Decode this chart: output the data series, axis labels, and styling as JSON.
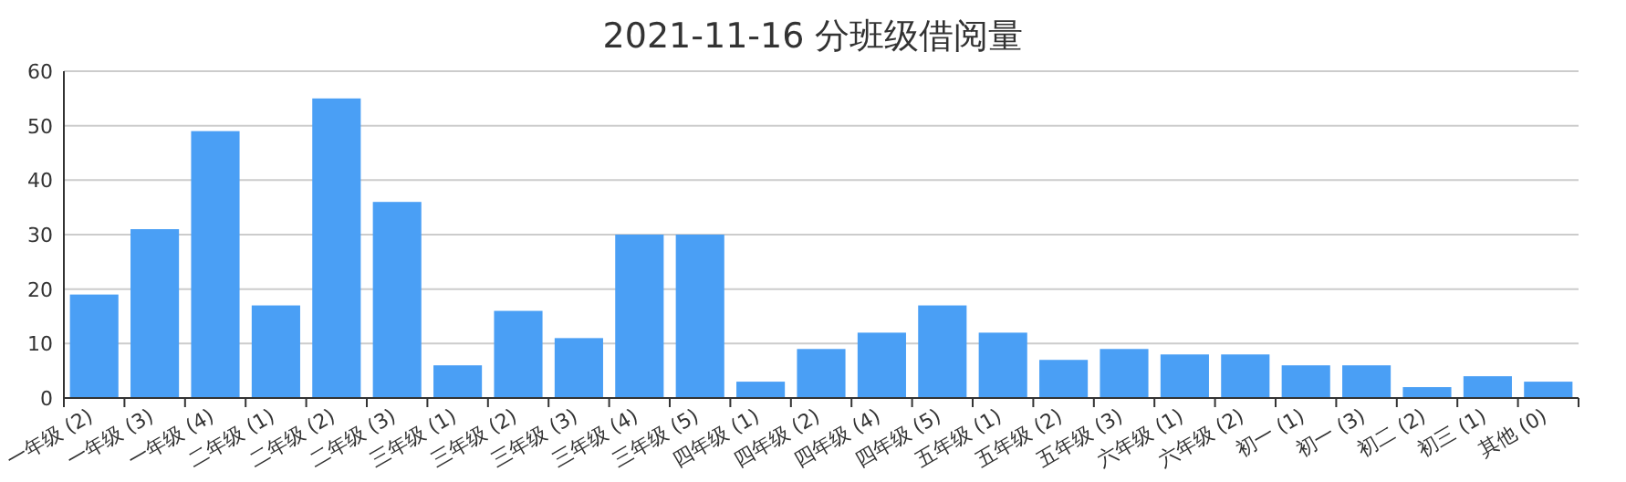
{
  "chart_data": {
    "type": "bar",
    "title": "2021-11-16 分班级借阅量",
    "categories": [
      "一年级 (2)",
      "一年级 (3)",
      "一年级 (4)",
      "二年级 (1)",
      "二年级 (2)",
      "二年级 (3)",
      "三年级 (1)",
      "三年级 (2)",
      "三年级 (3)",
      "三年级 (4)",
      "三年级 (5)",
      "四年级 (1)",
      "四年级 (2)",
      "四年级 (4)",
      "四年级 (5)",
      "五年级 (1)",
      "五年级 (2)",
      "五年级 (3)",
      "六年级 (1)",
      "六年级 (2)",
      "初一 (1)",
      "初一 (3)",
      "初二 (2)",
      "初三 (1)",
      "其他 (0)"
    ],
    "values": [
      19,
      31,
      49,
      17,
      55,
      36,
      6,
      16,
      11,
      30,
      30,
      3,
      9,
      12,
      17,
      12,
      7,
      9,
      8,
      8,
      6,
      6,
      2,
      4,
      3
    ],
    "color": "#4a9ff5",
    "ylim": [
      0,
      60
    ],
    "yticks": [
      0,
      10,
      20,
      30,
      40,
      50,
      60
    ],
    "grid": "y"
  }
}
